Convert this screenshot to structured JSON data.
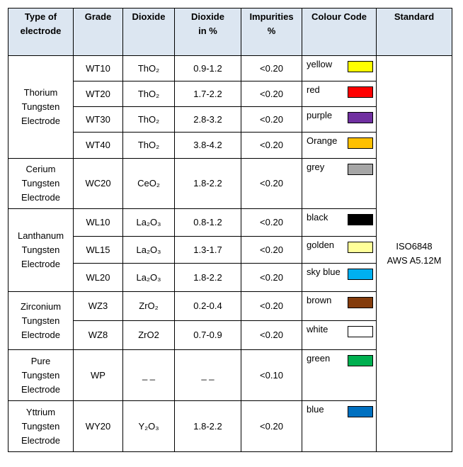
{
  "table": {
    "header": [
      "Type of electrode",
      "Grade",
      "Dioxide",
      "Dioxide in %",
      "Impurities %",
      "Colour Code",
      "Standard"
    ],
    "groups": [
      {
        "type": "Thorium Tungsten Electrode",
        "rows": [
          {
            "grade": "WT10",
            "dioxide": "ThO₂",
            "percent": "0.9-1.2",
            "impurities": "<0.20",
            "colour": "yellow",
            "swatch": "#ffff00"
          },
          {
            "grade": "WT20",
            "dioxide": "ThO₂",
            "percent": "1.7-2.2",
            "impurities": "<0.20",
            "colour": "red",
            "swatch": "#ff0000"
          },
          {
            "grade": "WT30",
            "dioxide": "ThO₂",
            "percent": "2.8-3.2",
            "impurities": "<0.20",
            "colour": "purple",
            "swatch": "#7030a0"
          },
          {
            "grade": "WT40",
            "dioxide": "ThO₂",
            "percent": "3.8-4.2",
            "impurities": "<0.20",
            "colour": "Orange",
            "swatch": "#ffc000"
          }
        ]
      },
      {
        "type": "Cerium Tungsten Electrode",
        "rows": [
          {
            "grade": "WC20",
            "dioxide": "CeO₂",
            "percent": "1.8-2.2",
            "impurities": "<0.20",
            "colour": "grey",
            "swatch": "#a6a6a6"
          }
        ]
      },
      {
        "type": "Lanthanum Tungsten Electrode",
        "rows": [
          {
            "grade": "WL10",
            "dioxide": "La₂O₃",
            "percent": "0.8-1.2",
            "impurities": "<0.20",
            "colour": "black",
            "swatch": "#000000"
          },
          {
            "grade": "WL15",
            "dioxide": "La₂O₃",
            "percent": "1.3-1.7",
            "impurities": "<0.20",
            "colour": "golden",
            "swatch": "#ffff99"
          },
          {
            "grade": "WL20",
            "dioxide": "La₂O₃",
            "percent": "1.8-2.2",
            "impurities": "<0.20",
            "colour": "sky blue",
            "swatch": "#00b0f0"
          }
        ]
      },
      {
        "type": "Zirconium Tungsten Electrode",
        "rows": [
          {
            "grade": "WZ3",
            "dioxide": "ZrO₂",
            "percent": "0.2-0.4",
            "impurities": "<0.20",
            "colour": "brown",
            "swatch": "#843c0c"
          },
          {
            "grade": "WZ8",
            "dioxide": "ZrO2",
            "percent": "0.7-0.9",
            "impurities": "<0.20",
            "colour": "white",
            "swatch": "#ffffff"
          }
        ]
      },
      {
        "type": "Pure Tungsten Electrode",
        "rows": [
          {
            "grade": "WP",
            "dioxide": "_ _",
            "percent": "_ _",
            "impurities": "<0.10",
            "colour": "green",
            "swatch": "#00b050"
          }
        ]
      },
      {
        "type": "Yttrium Tungsten Electrode",
        "rows": [
          {
            "grade": "WY20",
            "dioxide": "Y₂O₃",
            "percent": "1.8-2.2",
            "impurities": "<0.20",
            "colour": "blue",
            "swatch": "#0070c0"
          }
        ]
      }
    ],
    "standard": [
      "ISO6848",
      "AWS A5.12M"
    ]
  }
}
